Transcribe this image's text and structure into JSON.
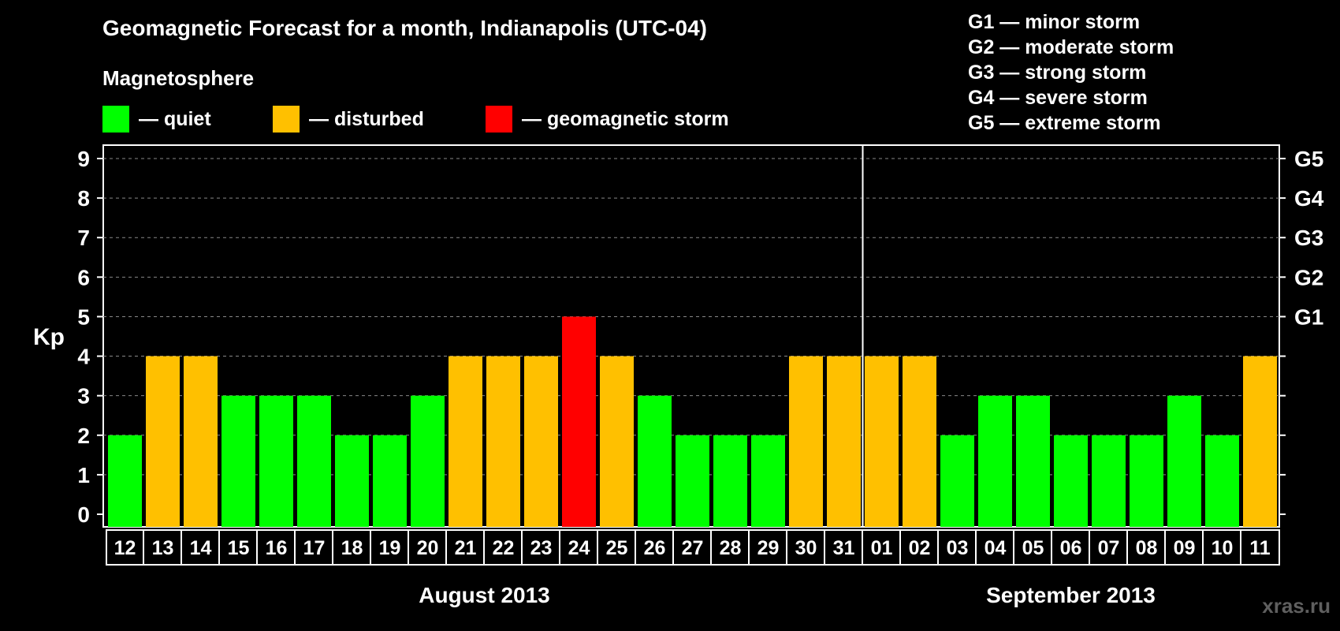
{
  "title": "Geomagnetic Forecast for a month, Indianapolis (UTC-04)",
  "legend": {
    "title": "Magnetosphere",
    "items": [
      {
        "label": "— quiet",
        "color": "#00ff00"
      },
      {
        "label": "— disturbed",
        "color": "#ffc000"
      },
      {
        "label": "— geomagnetic storm",
        "color": "#ff0000"
      }
    ]
  },
  "g_scale": [
    "G1 — minor storm",
    "G2 — moderate storm",
    "G3 — strong storm",
    "G4 — severe storm",
    "G5 — extreme storm"
  ],
  "watermark": "xras.ru",
  "colors": {
    "quiet": "#00ff00",
    "disturbed": "#ffc000",
    "storm": "#ff0000",
    "background": "#000000"
  },
  "chart_data": {
    "type": "bar",
    "ylabel": "Kp",
    "ylim": [
      0,
      9
    ],
    "yticks": [
      0,
      1,
      2,
      3,
      4,
      5,
      6,
      7,
      8,
      9
    ],
    "grid": true,
    "right_axis_labels": [
      {
        "value": 5,
        "label": "G1"
      },
      {
        "value": 6,
        "label": "G2"
      },
      {
        "value": 7,
        "label": "G3"
      },
      {
        "value": 8,
        "label": "G4"
      },
      {
        "value": 9,
        "label": "G5"
      }
    ],
    "categories": [
      "12",
      "13",
      "14",
      "15",
      "16",
      "17",
      "18",
      "19",
      "20",
      "21",
      "22",
      "23",
      "24",
      "25",
      "26",
      "27",
      "28",
      "29",
      "30",
      "31",
      "01",
      "02",
      "03",
      "04",
      "05",
      "06",
      "07",
      "08",
      "09",
      "10",
      "11"
    ],
    "values": [
      2,
      4,
      4,
      3,
      3,
      3,
      2,
      2,
      3,
      4,
      4,
      4,
      5,
      4,
      3,
      2,
      2,
      2,
      4,
      4,
      4,
      4,
      2,
      3,
      3,
      2,
      2,
      2,
      3,
      2,
      4
    ],
    "status": [
      "quiet",
      "disturbed",
      "disturbed",
      "quiet",
      "quiet",
      "quiet",
      "quiet",
      "quiet",
      "quiet",
      "disturbed",
      "disturbed",
      "disturbed",
      "storm",
      "disturbed",
      "quiet",
      "quiet",
      "quiet",
      "quiet",
      "disturbed",
      "disturbed",
      "disturbed",
      "disturbed",
      "quiet",
      "quiet",
      "quiet",
      "quiet",
      "quiet",
      "quiet",
      "quiet",
      "quiet",
      "disturbed"
    ],
    "months": [
      {
        "label": "August 2013",
        "from": 0,
        "to": 19
      },
      {
        "label": "September 2013",
        "from": 20,
        "to": 30
      }
    ]
  }
}
